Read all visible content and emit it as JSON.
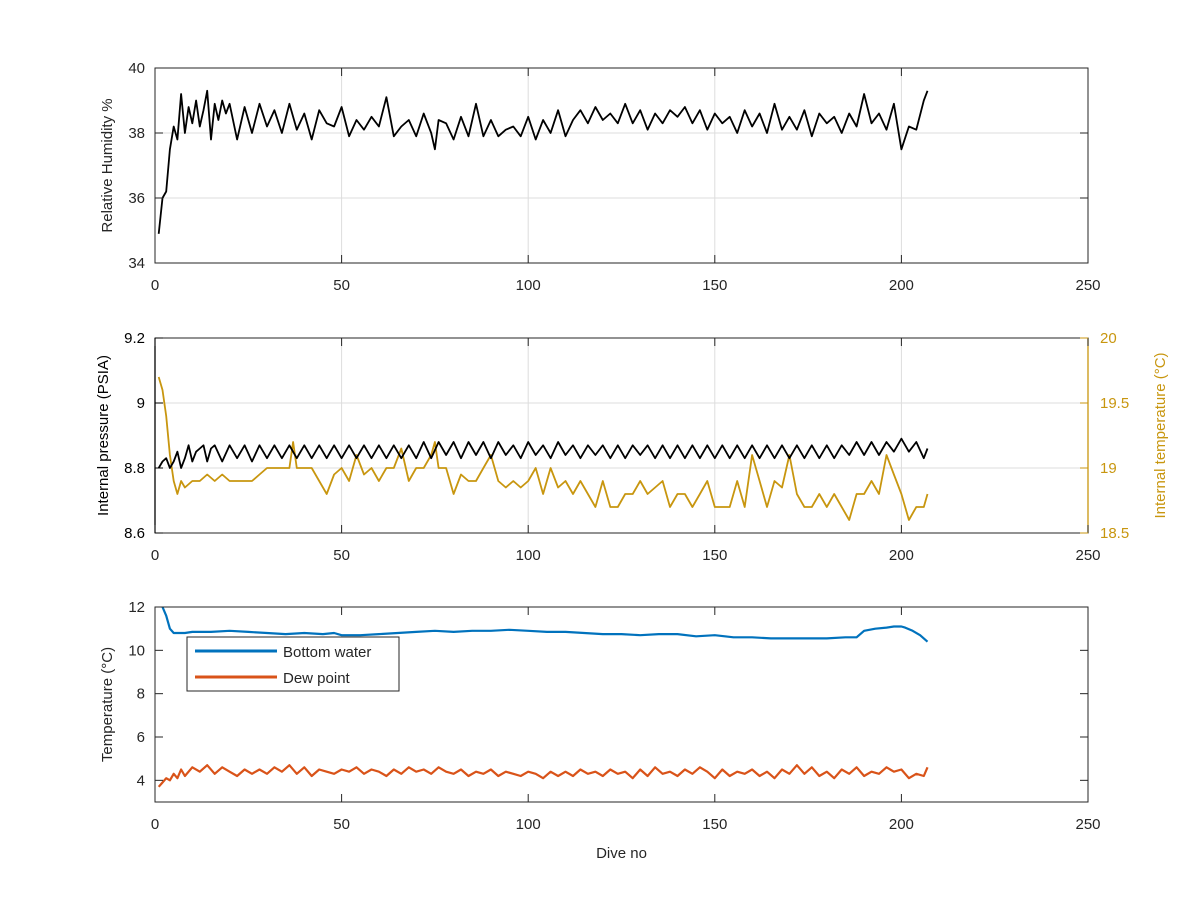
{
  "chart_data": [
    {
      "type": "line",
      "xlabel": "",
      "ylabel": "Relative Humidity %",
      "xlim": [
        0,
        250
      ],
      "ylim": [
        34,
        40
      ],
      "xticks": [
        0,
        50,
        100,
        150,
        200,
        250
      ],
      "yticks": [
        34,
        36,
        38,
        40
      ],
      "grid": true,
      "series": [
        {
          "color": "#000000",
          "x": [
            1,
            2,
            3,
            4,
            5,
            6,
            7,
            8,
            9,
            10,
            11,
            12,
            13,
            14,
            15,
            16,
            17,
            18,
            19,
            20,
            22,
            24,
            26,
            28,
            30,
            32,
            34,
            36,
            38,
            40,
            42,
            44,
            46,
            48,
            50,
            52,
            54,
            56,
            58,
            60,
            62,
            64,
            66,
            68,
            70,
            72,
            74,
            75,
            76,
            78,
            80,
            82,
            84,
            86,
            88,
            90,
            92,
            94,
            96,
            98,
            100,
            102,
            104,
            106,
            108,
            110,
            112,
            114,
            116,
            118,
            120,
            122,
            124,
            126,
            128,
            130,
            132,
            134,
            136,
            138,
            140,
            142,
            144,
            146,
            148,
            150,
            152,
            154,
            156,
            158,
            160,
            162,
            164,
            166,
            168,
            170,
            172,
            174,
            176,
            178,
            180,
            182,
            184,
            186,
            188,
            190,
            192,
            194,
            196,
            198,
            200,
            202,
            204,
            206,
            207
          ],
          "y": [
            34.9,
            36.0,
            36.2,
            37.5,
            38.2,
            37.8,
            39.2,
            38.0,
            38.8,
            38.3,
            39.0,
            38.2,
            38.7,
            39.3,
            37.8,
            38.9,
            38.4,
            39.0,
            38.6,
            38.9,
            37.8,
            38.8,
            38.0,
            38.9,
            38.2,
            38.7,
            38.0,
            38.9,
            38.1,
            38.6,
            37.8,
            38.7,
            38.3,
            38.2,
            38.8,
            37.9,
            38.4,
            38.1,
            38.5,
            38.2,
            39.1,
            37.9,
            38.2,
            38.4,
            37.9,
            38.6,
            38.0,
            37.5,
            38.4,
            38.3,
            37.8,
            38.5,
            37.9,
            38.9,
            37.9,
            38.4,
            37.9,
            38.1,
            38.2,
            37.9,
            38.5,
            37.8,
            38.4,
            38.0,
            38.7,
            37.9,
            38.4,
            38.7,
            38.3,
            38.8,
            38.4,
            38.6,
            38.3,
            38.9,
            38.3,
            38.7,
            38.1,
            38.6,
            38.3,
            38.7,
            38.5,
            38.8,
            38.3,
            38.7,
            38.1,
            38.6,
            38.3,
            38.5,
            38.0,
            38.7,
            38.2,
            38.6,
            38.0,
            38.9,
            38.1,
            38.5,
            38.1,
            38.7,
            37.9,
            38.6,
            38.3,
            38.5,
            38.0,
            38.6,
            38.2,
            39.2,
            38.3,
            38.6,
            38.1,
            38.9,
            37.5,
            38.2,
            38.1,
            39.0,
            39.3
          ]
        }
      ]
    },
    {
      "type": "line",
      "xlabel": "",
      "ylabel": "Internal pressure (PSIA)",
      "ylabel_right": "Internal temperature (°C)",
      "xlim": [
        0,
        250
      ],
      "ylim": [
        8.6,
        9.2
      ],
      "ylim_right": [
        18.5,
        20
      ],
      "xticks": [
        0,
        50,
        100,
        150,
        200,
        250
      ],
      "yticks": [
        8.6,
        8.8,
        9,
        9.2
      ],
      "yticks_right": [
        18.5,
        19,
        19.5,
        20
      ],
      "grid": true,
      "series": [
        {
          "color": "#000000",
          "axis": "left",
          "x": [
            1,
            2,
            3,
            4,
            5,
            6,
            7,
            8,
            9,
            10,
            11,
            12,
            13,
            14,
            15,
            16,
            18,
            20,
            22,
            24,
            26,
            28,
            30,
            32,
            34,
            36,
            38,
            40,
            42,
            44,
            46,
            48,
            50,
            52,
            54,
            56,
            58,
            60,
            62,
            64,
            66,
            68,
            70,
            72,
            74,
            76,
            78,
            80,
            82,
            84,
            86,
            88,
            90,
            92,
            94,
            96,
            98,
            100,
            102,
            104,
            106,
            108,
            110,
            112,
            114,
            116,
            118,
            120,
            122,
            124,
            126,
            128,
            130,
            132,
            134,
            136,
            138,
            140,
            142,
            144,
            146,
            148,
            150,
            152,
            154,
            156,
            158,
            160,
            162,
            164,
            166,
            168,
            170,
            172,
            174,
            176,
            178,
            180,
            182,
            184,
            186,
            188,
            190,
            192,
            194,
            196,
            198,
            200,
            202,
            204,
            206,
            207
          ],
          "y": [
            8.8,
            8.82,
            8.83,
            8.8,
            8.82,
            8.85,
            8.8,
            8.83,
            8.87,
            8.82,
            8.85,
            8.86,
            8.87,
            8.82,
            8.86,
            8.87,
            8.82,
            8.87,
            8.83,
            8.87,
            8.82,
            8.87,
            8.83,
            8.87,
            8.83,
            8.87,
            8.83,
            8.87,
            8.83,
            8.87,
            8.83,
            8.87,
            8.83,
            8.87,
            8.83,
            8.87,
            8.83,
            8.87,
            8.83,
            8.87,
            8.83,
            8.87,
            8.83,
            8.88,
            8.83,
            8.88,
            8.84,
            8.88,
            8.83,
            8.88,
            8.84,
            8.88,
            8.83,
            8.88,
            8.84,
            8.87,
            8.83,
            8.88,
            8.84,
            8.87,
            8.83,
            8.88,
            8.84,
            8.87,
            8.83,
            8.87,
            8.84,
            8.87,
            8.83,
            8.87,
            8.83,
            8.87,
            8.84,
            8.87,
            8.83,
            8.87,
            8.83,
            8.87,
            8.83,
            8.87,
            8.83,
            8.87,
            8.83,
            8.87,
            8.83,
            8.87,
            8.83,
            8.87,
            8.83,
            8.87,
            8.83,
            8.87,
            8.83,
            8.87,
            8.83,
            8.87,
            8.83,
            8.87,
            8.83,
            8.87,
            8.84,
            8.88,
            8.84,
            8.88,
            8.84,
            8.88,
            8.85,
            8.89,
            8.85,
            8.88,
            8.83,
            8.86
          ]
        },
        {
          "color": "#C8960F",
          "axis": "right",
          "x": [
            1,
            2,
            3,
            4,
            5,
            6,
            7,
            8,
            10,
            12,
            14,
            16,
            18,
            20,
            22,
            24,
            26,
            28,
            30,
            32,
            34,
            36,
            37,
            38,
            40,
            42,
            44,
            46,
            48,
            50,
            52,
            54,
            56,
            58,
            60,
            62,
            64,
            66,
            68,
            70,
            72,
            74,
            75,
            76,
            78,
            80,
            82,
            84,
            86,
            88,
            90,
            92,
            94,
            96,
            98,
            100,
            102,
            104,
            106,
            108,
            110,
            112,
            114,
            116,
            118,
            120,
            122,
            124,
            126,
            128,
            130,
            132,
            134,
            136,
            138,
            140,
            142,
            144,
            146,
            148,
            150,
            152,
            154,
            156,
            158,
            160,
            162,
            164,
            166,
            168,
            170,
            172,
            174,
            176,
            178,
            180,
            182,
            184,
            186,
            188,
            190,
            192,
            194,
            196,
            198,
            200,
            202,
            204,
            206,
            207
          ],
          "y": [
            19.7,
            19.6,
            19.4,
            19.1,
            18.9,
            18.8,
            18.9,
            18.85,
            18.9,
            18.9,
            18.95,
            18.9,
            18.95,
            18.9,
            18.9,
            18.9,
            18.9,
            18.95,
            19.0,
            19.0,
            19.0,
            19.0,
            19.2,
            19.0,
            19.0,
            19.0,
            18.9,
            18.8,
            18.95,
            19.0,
            18.9,
            19.1,
            18.95,
            19.0,
            18.9,
            19.0,
            19.0,
            19.15,
            18.9,
            19.0,
            19.0,
            19.1,
            19.2,
            19.0,
            19.0,
            18.8,
            18.95,
            18.9,
            18.9,
            19.0,
            19.1,
            18.9,
            18.85,
            18.9,
            18.85,
            18.9,
            19.0,
            18.8,
            19.0,
            18.85,
            18.9,
            18.8,
            18.9,
            18.8,
            18.7,
            18.9,
            18.7,
            18.7,
            18.8,
            18.8,
            18.9,
            18.8,
            18.85,
            18.9,
            18.7,
            18.8,
            18.8,
            18.7,
            18.8,
            18.9,
            18.7,
            18.7,
            18.7,
            18.9,
            18.7,
            19.1,
            18.9,
            18.7,
            18.9,
            18.85,
            19.1,
            18.8,
            18.7,
            18.7,
            18.8,
            18.7,
            18.8,
            18.7,
            18.6,
            18.8,
            18.8,
            18.9,
            18.8,
            19.1,
            18.95,
            18.8,
            18.6,
            18.7,
            18.7,
            18.8
          ]
        }
      ]
    },
    {
      "type": "line",
      "xlabel": "Dive no",
      "ylabel": "Temperature (°C)",
      "xlim": [
        0,
        250
      ],
      "ylim": [
        3,
        12
      ],
      "xticks": [
        0,
        50,
        100,
        150,
        200,
        250
      ],
      "yticks": [
        4,
        6,
        8,
        10,
        12
      ],
      "grid": false,
      "legend": "top-left",
      "series": [
        {
          "name": "Bottom water",
          "color": "#0072BD",
          "x": [
            2,
            3,
            4,
            5,
            6,
            8,
            10,
            15,
            20,
            25,
            30,
            35,
            40,
            45,
            48,
            50,
            55,
            60,
            65,
            70,
            75,
            80,
            85,
            90,
            95,
            100,
            105,
            110,
            115,
            120,
            125,
            130,
            135,
            140,
            145,
            150,
            155,
            160,
            165,
            170,
            175,
            180,
            185,
            188,
            190,
            193,
            196,
            198,
            200,
            201,
            203,
            205,
            207
          ],
          "y": [
            12.0,
            11.6,
            11.0,
            10.8,
            10.8,
            10.8,
            10.85,
            10.85,
            10.9,
            10.85,
            10.8,
            10.75,
            10.8,
            10.75,
            10.8,
            10.7,
            10.7,
            10.75,
            10.8,
            10.85,
            10.9,
            10.85,
            10.9,
            10.9,
            10.95,
            10.9,
            10.85,
            10.85,
            10.8,
            10.75,
            10.75,
            10.7,
            10.75,
            10.75,
            10.65,
            10.7,
            10.6,
            10.6,
            10.55,
            10.55,
            10.55,
            10.55,
            10.6,
            10.6,
            10.9,
            11.0,
            11.05,
            11.1,
            11.1,
            11.05,
            10.9,
            10.7,
            10.4
          ]
        },
        {
          "name": "Dew point",
          "color": "#D95319",
          "x": [
            1,
            2,
            3,
            4,
            5,
            6,
            7,
            8,
            10,
            12,
            14,
            16,
            18,
            20,
            22,
            24,
            26,
            28,
            30,
            32,
            34,
            36,
            38,
            40,
            42,
            44,
            46,
            48,
            50,
            52,
            54,
            56,
            58,
            60,
            62,
            64,
            66,
            68,
            70,
            72,
            74,
            76,
            78,
            80,
            82,
            84,
            86,
            88,
            90,
            92,
            94,
            96,
            98,
            100,
            102,
            104,
            106,
            108,
            110,
            112,
            114,
            116,
            118,
            120,
            122,
            124,
            126,
            128,
            130,
            132,
            134,
            136,
            138,
            140,
            142,
            144,
            146,
            148,
            150,
            152,
            154,
            156,
            158,
            160,
            162,
            164,
            166,
            168,
            170,
            172,
            174,
            176,
            178,
            180,
            182,
            184,
            186,
            188,
            190,
            192,
            194,
            196,
            198,
            200,
            202,
            204,
            206,
            207
          ],
          "y": [
            3.7,
            3.9,
            4.1,
            4.0,
            4.3,
            4.1,
            4.5,
            4.2,
            4.6,
            4.4,
            4.7,
            4.3,
            4.6,
            4.4,
            4.2,
            4.5,
            4.3,
            4.5,
            4.3,
            4.6,
            4.4,
            4.7,
            4.3,
            4.6,
            4.2,
            4.5,
            4.4,
            4.3,
            4.5,
            4.4,
            4.6,
            4.3,
            4.5,
            4.4,
            4.2,
            4.5,
            4.3,
            4.6,
            4.4,
            4.5,
            4.3,
            4.6,
            4.4,
            4.3,
            4.5,
            4.2,
            4.4,
            4.3,
            4.5,
            4.2,
            4.4,
            4.3,
            4.2,
            4.4,
            4.3,
            4.1,
            4.4,
            4.2,
            4.4,
            4.2,
            4.5,
            4.3,
            4.4,
            4.2,
            4.5,
            4.3,
            4.4,
            4.1,
            4.5,
            4.2,
            4.6,
            4.3,
            4.4,
            4.2,
            4.5,
            4.3,
            4.6,
            4.4,
            4.1,
            4.5,
            4.2,
            4.4,
            4.3,
            4.5,
            4.2,
            4.4,
            4.1,
            4.5,
            4.3,
            4.7,
            4.3,
            4.6,
            4.2,
            4.4,
            4.1,
            4.5,
            4.3,
            4.6,
            4.2,
            4.4,
            4.3,
            4.6,
            4.4,
            4.5,
            4.1,
            4.3,
            4.2,
            4.6
          ]
        }
      ]
    }
  ]
}
